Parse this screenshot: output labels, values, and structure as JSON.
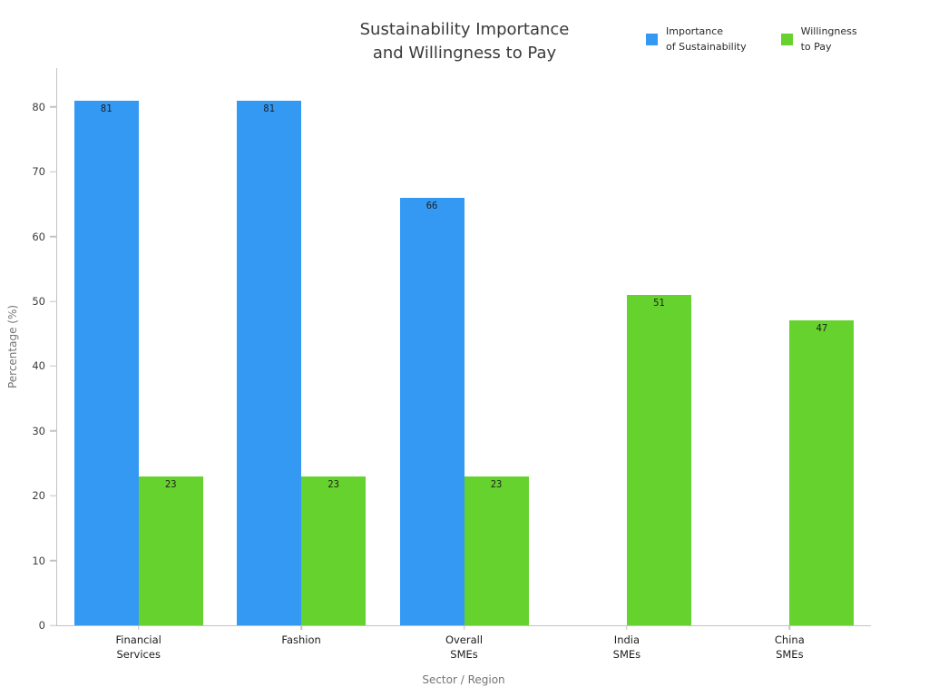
{
  "chart_data": {
    "type": "bar",
    "title": "Sustainability Importance and Willingness to Pay",
    "title_lines": [
      "Sustainability Importance",
      "and Willingness to Pay"
    ],
    "categories": [
      "Financial\nServices",
      "Fashion",
      "Overall\nSMEs",
      "India\nSMEs",
      "China\nSMEs"
    ],
    "series": [
      {
        "name": "Importance of Sustainability",
        "color": "#3399f3",
        "values": [
          81,
          81,
          66,
          null,
          null
        ]
      },
      {
        "name": "Willingness to Pay",
        "color": "#66d22e",
        "values": [
          23,
          23,
          23,
          51,
          47
        ]
      }
    ],
    "legend_entries": [
      {
        "lines": [
          "Importance",
          "of Sustainability"
        ],
        "color": "#3399f3"
      },
      {
        "lines": [
          "Willingness",
          "to Pay"
        ],
        "color": "#66d22e"
      }
    ],
    "xlabel": "Sector / Region",
    "ylabel": "Percentage (%)",
    "ylim": [
      0,
      86
    ],
    "yticks": [
      0,
      10,
      20,
      30,
      40,
      50,
      60,
      70,
      80
    ],
    "grid": false,
    "legend_position": "top-right",
    "bar_value_labels": true
  }
}
